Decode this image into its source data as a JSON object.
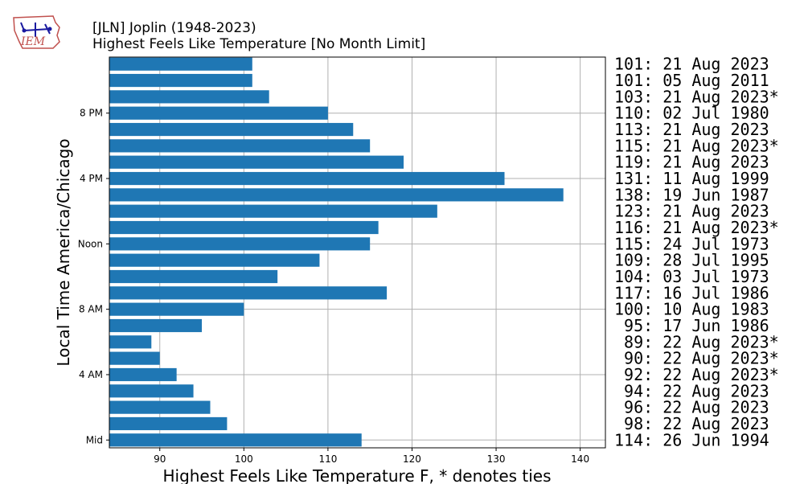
{
  "header": {
    "title_line1": "[JLN] Joplin (1948-2023)",
    "title_line2": "Highest Feels Like Temperature [No Month Limit]",
    "logo_text": "IEM"
  },
  "chart_data": {
    "type": "bar",
    "orientation": "horizontal",
    "title": "[JLN] Joplin (1948-2023)",
    "subtitle": "Highest Feels Like Temperature [No Month Limit]",
    "xlabel": "Highest Feels Like Temperature F, * denotes ties",
    "ylabel": "Local Time America/Chicago",
    "xlim": [
      84,
      143
    ],
    "xticks": [
      90,
      100,
      110,
      120,
      130,
      140
    ],
    "ytick_labels": [
      {
        "hour": 0,
        "label": "Mid"
      },
      {
        "hour": 4,
        "label": "4 AM"
      },
      {
        "hour": 8,
        "label": "8 AM"
      },
      {
        "hour": 12,
        "label": "Noon"
      },
      {
        "hour": 16,
        "label": "4 PM"
      },
      {
        "hour": 20,
        "label": "8 PM"
      }
    ],
    "grid": true,
    "bar_color": "#1f77b4",
    "hours": [
      0,
      1,
      2,
      3,
      4,
      5,
      6,
      7,
      8,
      9,
      10,
      11,
      12,
      13,
      14,
      15,
      16,
      17,
      18,
      19,
      20,
      21,
      22,
      23
    ],
    "values": [
      114,
      98,
      96,
      94,
      92,
      90,
      89,
      95,
      100,
      117,
      104,
      109,
      115,
      116,
      123,
      138,
      131,
      119,
      115,
      113,
      110,
      103,
      101,
      101
    ],
    "annotations": [
      "114: 26 Jun 1994",
      " 98: 22 Aug 2023",
      " 96: 22 Aug 2023",
      " 94: 22 Aug 2023",
      " 92: 22 Aug 2023*",
      " 90: 22 Aug 2023*",
      " 89: 22 Aug 2023*",
      " 95: 17 Jun 1986",
      "100: 10 Aug 1983",
      "117: 16 Jul 1986",
      "104: 03 Jul 1973",
      "109: 28 Jul 1995",
      "115: 24 Jul 1973",
      "116: 21 Aug 2023*",
      "123: 21 Aug 2023",
      "138: 19 Jun 1987",
      "131: 11 Aug 1999",
      "119: 21 Aug 2023",
      "115: 21 Aug 2023*",
      "113: 21 Aug 2023",
      "110: 02 Jul 1980",
      "103: 21 Aug 2023*",
      "101: 05 Aug 2011",
      "101: 21 Aug 2023"
    ]
  }
}
